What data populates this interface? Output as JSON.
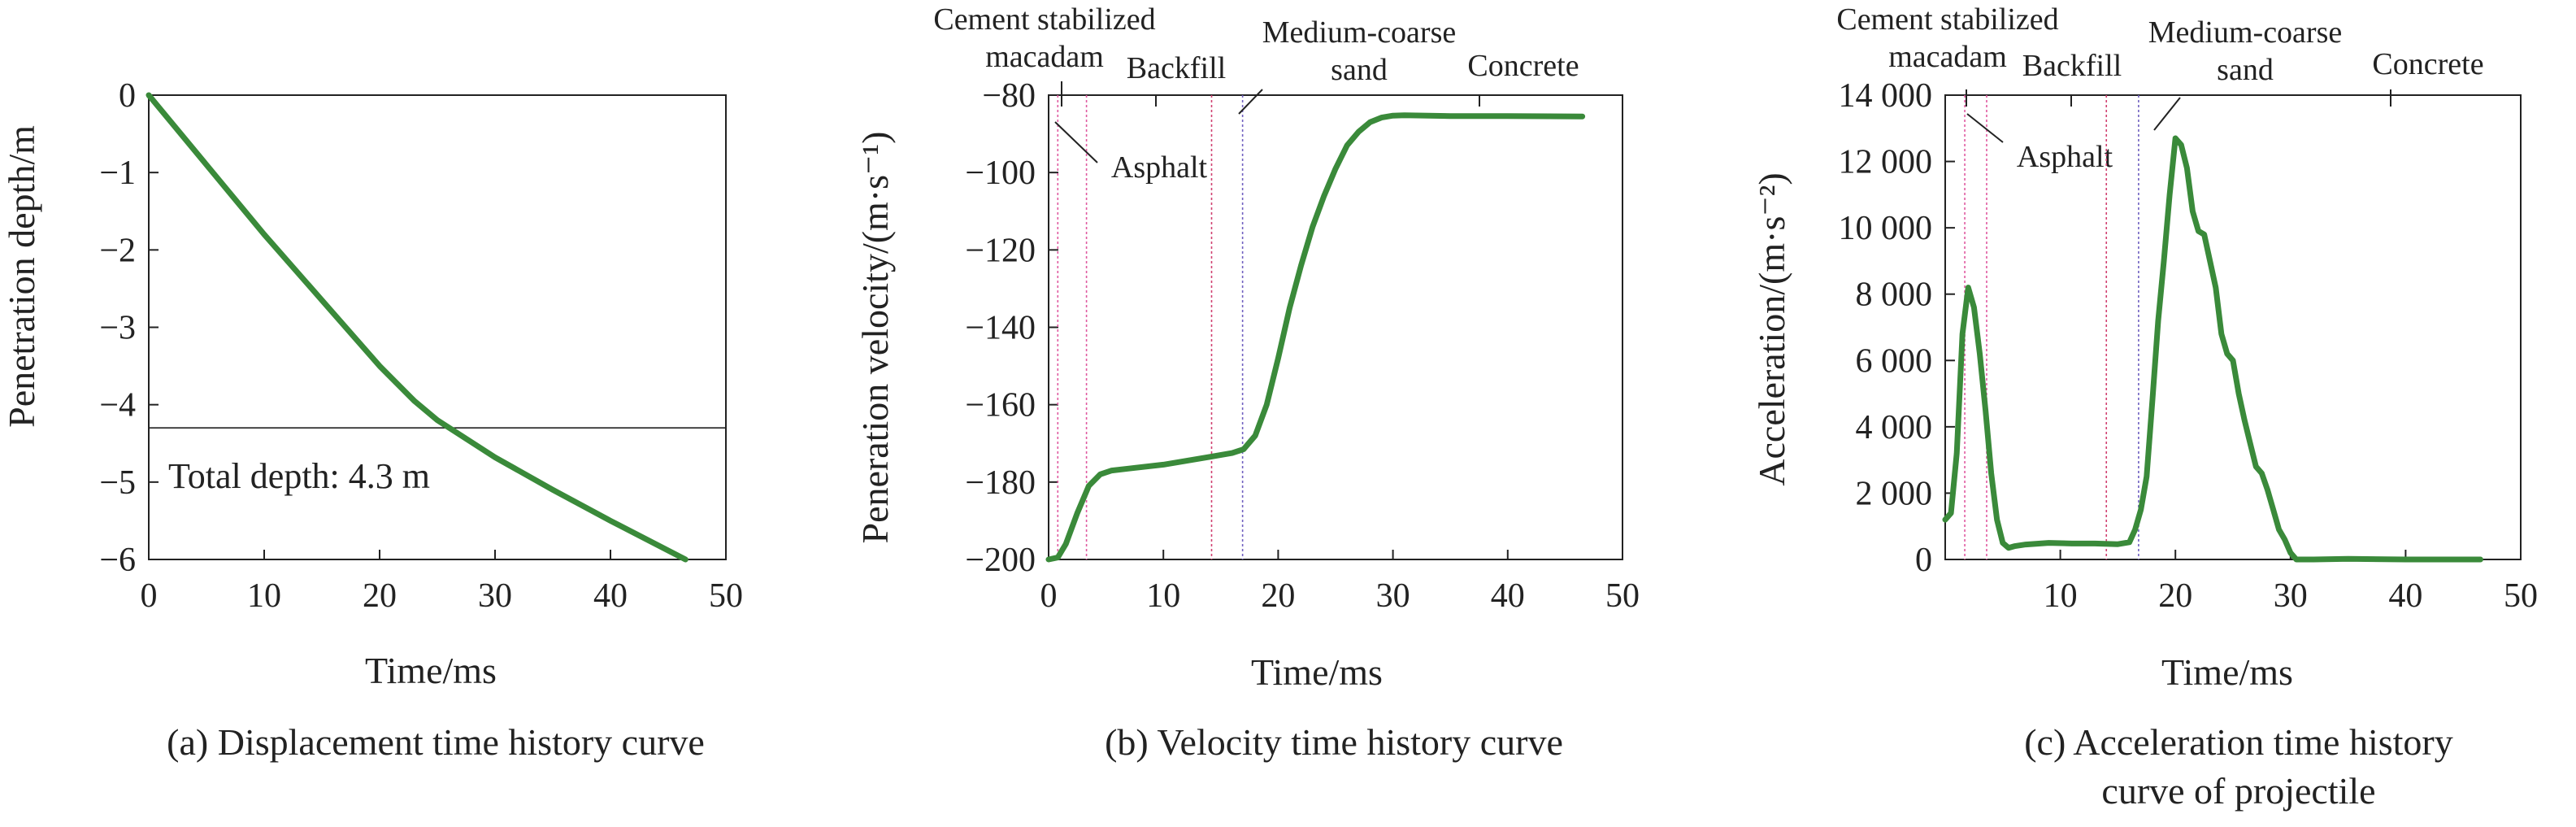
{
  "chart_data": [
    {
      "type": "line",
      "caption": "(a) Displacement time history curve",
      "xlabel": "Time/ms",
      "ylabel": "Penetration depth/m",
      "xlim": [
        0,
        50
      ],
      "ylim": [
        -6,
        0
      ],
      "xticks": [
        "0",
        "10",
        "20",
        "30",
        "40",
        "50"
      ],
      "yticks": [
        "0",
        "−1",
        "−2",
        "−3",
        "−4",
        "−5",
        "−6"
      ],
      "series": [
        {
          "color": "#3a8a3a",
          "x": [
            0,
            5,
            10,
            15,
            20,
            23,
            25,
            30,
            35,
            40,
            46.5
          ],
          "y": [
            0,
            -0.9,
            -1.8,
            -2.65,
            -3.5,
            -3.95,
            -4.2,
            -4.68,
            -5.1,
            -5.5,
            -6.0
          ]
        }
      ],
      "hline": {
        "y": -4.3,
        "label": "Total depth: 4.3 m"
      },
      "grid": false
    },
    {
      "type": "line",
      "caption": "(b) Velocity time history curve",
      "xlabel": "Time/ms",
      "ylabel": "Peneration velocity/(m·s⁻¹)",
      "xlim": [
        0,
        50
      ],
      "ylim": [
        -200,
        -80
      ],
      "xticks": [
        "0",
        "10",
        "20",
        "30",
        "40",
        "50"
      ],
      "yticks": [
        "−80",
        "−100",
        "−120",
        "−140",
        "−160",
        "−180",
        "−200"
      ],
      "series": [
        {
          "color": "#3a8a3a",
          "x": [
            0,
            0.8,
            1.5,
            2.5,
            3.5,
            4.5,
            5.5,
            7,
            10,
            14,
            16,
            17,
            18,
            19,
            20,
            21,
            22,
            23,
            24,
            25,
            26,
            27,
            28,
            29,
            30,
            31,
            35,
            40,
            46.5
          ],
          "y": [
            -200,
            -199.5,
            -196,
            -188,
            -181,
            -178,
            -177,
            -176.5,
            -175.5,
            -173.5,
            -172.5,
            -171.5,
            -168,
            -160,
            -148,
            -135,
            -124,
            -114,
            -106,
            -99,
            -93,
            -89.5,
            -87,
            -85.8,
            -85.3,
            -85.2,
            -85.4,
            -85.4,
            -85.5
          ]
        }
      ],
      "layer_lines_x": [
        0.8,
        3.3,
        14.2,
        16.9
      ],
      "layer_labels": [
        "Cement stabilized macadam",
        "Backfill",
        "Medium-coarse sand",
        "Concrete",
        "Asphalt"
      ],
      "grid": false
    },
    {
      "type": "line",
      "caption": "(c) Acceleration time history curve of projectile",
      "xlabel": "Time/ms",
      "ylabel": "Acceleration/(m·s⁻²)",
      "xlim": [
        0,
        50
      ],
      "ylim": [
        0,
        14000
      ],
      "xticks": [
        "10",
        "20",
        "30",
        "40",
        "50"
      ],
      "yticks": [
        "0",
        "2 000",
        "4 000",
        "6 000",
        "8 000",
        "10 000",
        "12 000",
        "14 000"
      ],
      "series": [
        {
          "color": "#3a8a3a",
          "x": [
            0,
            0.5,
            1,
            1.5,
            2,
            2.5,
            3,
            3.5,
            4,
            4.5,
            5,
            5.5,
            6,
            7,
            9,
            11,
            13,
            15,
            16,
            16.5,
            17,
            17.5,
            18,
            18.5,
            19,
            19.5,
            20,
            20.5,
            21,
            21.5,
            22,
            22.5,
            23,
            23.5,
            24,
            24.5,
            25,
            25.5,
            26,
            26.5,
            27,
            27.5,
            28,
            28.5,
            29,
            29.5,
            30,
            30.5,
            31,
            32,
            35,
            40,
            46.5
          ],
          "y": [
            1200,
            1400,
            3200,
            6800,
            8200,
            7600,
            6200,
            4500,
            2600,
            1200,
            500,
            350,
            400,
            450,
            500,
            480,
            480,
            460,
            520,
            900,
            1500,
            2500,
            4800,
            7200,
            9000,
            11000,
            12700,
            12500,
            11800,
            10500,
            9900,
            9800,
            9000,
            8200,
            6800,
            6200,
            6000,
            5000,
            4200,
            3500,
            2800,
            2600,
            2100,
            1500,
            900,
            600,
            200,
            0,
            0,
            0,
            20,
            0,
            0
          ]
        }
      ],
      "layer_lines_x": [
        1.7,
        3.6,
        14.0,
        16.8
      ],
      "layer_labels": [
        "Cement stabilized macadam",
        "Backfill",
        "Medium-coarse sand",
        "Concrete",
        "Asphalt"
      ],
      "grid": false
    }
  ]
}
